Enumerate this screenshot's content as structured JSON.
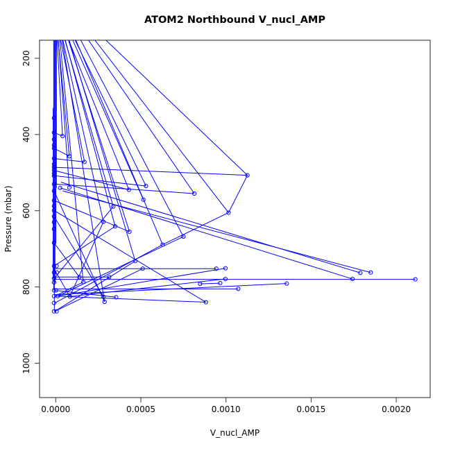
{
  "chart_data": {
    "type": "scatter",
    "title": "ATOM2 Northbound V_nucl_AMP",
    "xlabel": "V_nucl_AMP",
    "ylabel": "Pressure (mbar)",
    "x_axis": {
      "tick_values": [
        0.0,
        0.0005,
        0.001,
        0.0015,
        0.002
      ],
      "tick_labels": [
        "0.0000",
        "0.0005",
        "0.0010",
        "0.0015",
        "0.0020"
      ],
      "range": [
        -9.5e-05,
        0.0022
      ]
    },
    "y_axis": {
      "tick_values": [
        200,
        400,
        600,
        800,
        1000
      ],
      "tick_labels": [
        "200",
        "400",
        "600",
        "800",
        "1000"
      ],
      "range": [
        1090,
        152
      ],
      "reversed": true,
      "unit": "mbar"
    },
    "legend": "none",
    "grid": false,
    "marker": "open-circle",
    "style": {
      "line_color": "#0000ff",
      "marker_color": "#0000ff",
      "box_color": "#333333",
      "background": "#ffffff"
    },
    "points": [
      [
        -1e-05,
        357
      ],
      [
        -1e-05,
        395
      ],
      [
        -1e-05,
        413
      ],
      [
        -1e-05,
        428
      ],
      [
        -1e-05,
        436
      ],
      [
        -1e-05,
        463
      ],
      [
        -1e-05,
        478
      ],
      [
        -1e-05,
        486
      ],
      [
        -1e-05,
        494
      ],
      [
        -1e-05,
        502
      ],
      [
        -1e-05,
        508
      ],
      [
        -1e-05,
        530
      ],
      [
        -1e-05,
        548
      ],
      [
        -1e-05,
        573
      ],
      [
        -1e-05,
        588
      ],
      [
        -1e-05,
        599
      ],
      [
        -1e-05,
        615
      ],
      [
        -1e-05,
        630
      ],
      [
        -1e-05,
        648
      ],
      [
        -1e-05,
        684
      ],
      [
        -1e-05,
        745
      ],
      [
        -1e-05,
        762
      ],
      [
        -1e-05,
        778
      ],
      [
        -1e-05,
        788
      ],
      [
        -1e-05,
        809
      ],
      [
        -1e-05,
        824
      ],
      [
        -1e-05,
        842
      ],
      [
        -1e-05,
        864
      ],
      [
        5e-06,
        745
      ],
      [
        7e-06,
        762
      ],
      [
        2e-06,
        809
      ],
      [
        1.2e-05,
        824
      ],
      [
        5e-06,
        864
      ],
      [
        2.6e-05,
        540
      ],
      [
        4e-05,
        404
      ],
      [
        8e-05,
        457
      ],
      [
        0.000169,
        472
      ],
      [
        8e-05,
        539
      ],
      [
        8.3e-05,
        825
      ],
      [
        0.000139,
        774
      ],
      [
        0.000162,
        787
      ],
      [
        0.00028,
        629
      ],
      [
        0.000281,
        826
      ],
      [
        0.000287,
        839
      ],
      [
        0.000314,
        774
      ],
      [
        0.000338,
        589
      ],
      [
        0.000349,
        641
      ],
      [
        0.000355,
        827
      ],
      [
        0.00043,
        545
      ],
      [
        0.000433,
        655
      ],
      [
        0.000467,
        732
      ],
      [
        0.000515,
        571
      ],
      [
        0.000511,
        752
      ],
      [
        0.00053,
        535
      ],
      [
        0.000628,
        689
      ],
      [
        0.00075,
        668
      ],
      [
        0.000814,
        555
      ],
      [
        0.000848,
        792
      ],
      [
        0.000882,
        840
      ],
      [
        0.000943,
        752
      ],
      [
        0.000966,
        790
      ],
      [
        0.000997,
        751
      ],
      [
        0.000997,
        779
      ],
      [
        0.001015,
        605
      ],
      [
        0.001072,
        805
      ],
      [
        0.001126,
        507
      ],
      [
        0.001357,
        791
      ],
      [
        0.001743,
        779
      ],
      [
        0.001789,
        763
      ],
      [
        0.00185,
        762
      ],
      [
        0.002112,
        780
      ]
    ],
    "segments": [
      [
        -1.2e-05,
        118,
        -1.2e-05,
        809
      ],
      [
        -8e-06,
        118,
        -8e-06,
        864
      ],
      [
        -4e-06,
        118,
        -4e-06,
        788
      ],
      [
        1e-06,
        118,
        1e-06,
        684
      ],
      [
        -1.5e-05,
        330,
        -1.5e-05,
        778
      ],
      [
        4e-06,
        118,
        4e-06,
        540
      ],
      [
        0.0002,
        112,
        0.001126,
        507
      ],
      [
        0.00016,
        112,
        0.001015,
        605
      ],
      [
        0.00013,
        112,
        0.000814,
        555
      ],
      [
        0.0001,
        112,
        0.00075,
        668
      ],
      [
        8e-05,
        112,
        0.000628,
        689
      ],
      [
        7e-05,
        112,
        0.00053,
        535
      ],
      [
        6e-05,
        112,
        0.000515,
        571
      ],
      [
        5.2e-05,
        112,
        0.000467,
        732
      ],
      [
        4.6e-05,
        112,
        0.000433,
        655
      ],
      [
        4e-05,
        112,
        0.00043,
        545
      ],
      [
        3.2e-05,
        112,
        0.000349,
        641
      ],
      [
        2.8e-05,
        112,
        0.000338,
        589
      ],
      [
        2.2e-05,
        112,
        0.00028,
        629
      ],
      [
        1.2e-05,
        112,
        0.000169,
        472
      ],
      [
        6e-06,
        112,
        8e-05,
        457
      ],
      [
        3e-06,
        112,
        4e-05,
        404
      ],
      [
        9e-06,
        112,
        8e-05,
        539
      ],
      [
        1.6e-05,
        112,
        0.000162,
        787
      ],
      [
        2.4e-05,
        112,
        0.000287,
        839
      ],
      [
        2.6e-05,
        540,
        0.001743,
        779
      ],
      [
        3e-05,
        525,
        0.001789,
        763
      ],
      [
        4e-05,
        548,
        0.00185,
        762
      ],
      [
        -1e-05,
        780,
        0.002112,
        780
      ],
      [
        -1e-05,
        752,
        0.000943,
        752
      ],
      [
        -5e-06,
        805,
        0.001072,
        805
      ],
      [
        -5e-06,
        824,
        0.000882,
        840
      ],
      [
        -1e-05,
        774,
        0.000314,
        774
      ],
      [
        0.000848,
        792,
        0.000966,
        790
      ],
      [
        -5e-06,
        820,
        0.001357,
        791
      ],
      [
        -5e-06,
        864,
        0.000467,
        732
      ],
      [
        -5e-06,
        842,
        0.000628,
        689
      ],
      [
        -5e-06,
        809,
        0.000355,
        827
      ],
      [
        -5e-06,
        824,
        0.000162,
        787
      ],
      [
        8.3e-05,
        825,
        -1e-05,
        752
      ],
      [
        0.000139,
        774,
        -1e-05,
        684
      ],
      [
        0.000281,
        826,
        -1e-05,
        615
      ],
      [
        0.000882,
        840,
        -1e-05,
        599
      ],
      [
        0.00075,
        668,
        1.2e-05,
        824
      ],
      [
        0.000511,
        752,
        -5e-06,
        864
      ],
      [
        0.000997,
        751,
        1.2e-05,
        824
      ],
      [
        0.000338,
        589,
        -1e-05,
        778
      ],
      [
        0.000349,
        641,
        -1e-05,
        745
      ],
      [
        0.00028,
        629,
        8.3e-05,
        825
      ],
      [
        0.000287,
        839,
        -1e-05,
        548
      ],
      [
        0.001126,
        507,
        0.001015,
        605
      ],
      [
        0.001015,
        605,
        0.000628,
        689
      ],
      [
        0.00043,
        545,
        -1e-05,
        494
      ],
      [
        0.00053,
        535,
        -1e-05,
        508
      ],
      [
        0.000814,
        555,
        -1e-05,
        530
      ],
      [
        0.001126,
        507,
        -1e-05,
        486
      ],
      [
        0.000169,
        472,
        -1e-05,
        463
      ],
      [
        8e-05,
        457,
        -1e-05,
        436
      ],
      [
        4e-05,
        404,
        -1e-05,
        395
      ],
      [
        0.000997,
        779,
        8.3e-05,
        825
      ],
      [
        0.000433,
        655,
        -1e-05,
        573
      ]
    ]
  }
}
